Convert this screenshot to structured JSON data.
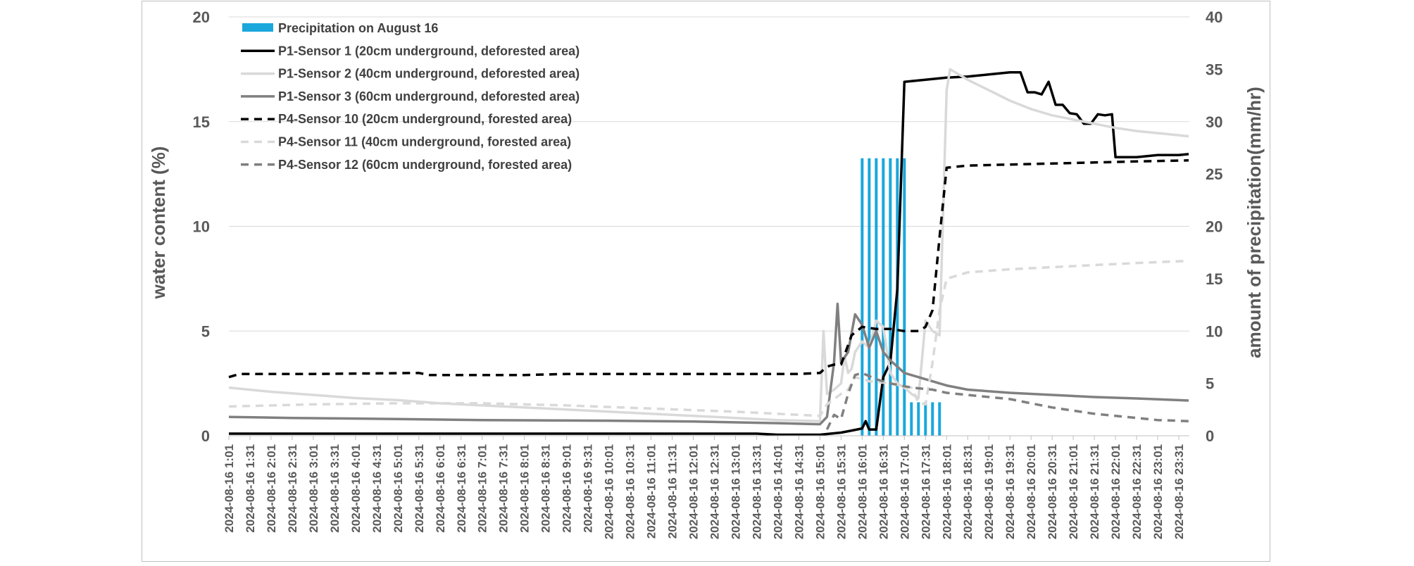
{
  "chart_data": {
    "type": "line",
    "title": "",
    "ylabel_left": "water content (%)",
    "ylabel_right": "amount of precipitation(mm/hr)",
    "ylim_left": [
      0,
      20
    ],
    "yticks_left": [
      0,
      5,
      10,
      15,
      20
    ],
    "ylim_right": [
      0,
      40
    ],
    "yticks_right": [
      0,
      5,
      10,
      15,
      20,
      25,
      30,
      35,
      40
    ],
    "grid": true,
    "legend_position": "top-left",
    "x": [
      "2024-08-16 1:01",
      "2024-08-16 1:31",
      "2024-08-16 2:01",
      "2024-08-16 2:31",
      "2024-08-16 3:01",
      "2024-08-16 3:31",
      "2024-08-16 4:01",
      "2024-08-16 4:31",
      "2024-08-16 5:01",
      "2024-08-16 5:31",
      "2024-08-16 6:01",
      "2024-08-16 6:31",
      "2024-08-16 7:01",
      "2024-08-16 7:31",
      "2024-08-16 8:01",
      "2024-08-16 8:31",
      "2024-08-16 9:01",
      "2024-08-16 9:31",
      "2024-08-16 10:01",
      "2024-08-16 10:31",
      "2024-08-16 11:01",
      "2024-08-16 11:31",
      "2024-08-16 12:01",
      "2024-08-16 12:31",
      "2024-08-16 13:01",
      "2024-08-16 13:31",
      "2024-08-16 14:01",
      "2024-08-16 14:31",
      "2024-08-16 15:01",
      "2024-08-16 15:31",
      "2024-08-16 16:01",
      "2024-08-16 16:31",
      "2024-08-16 17:01",
      "2024-08-16 17:31",
      "2024-08-16 18:01",
      "2024-08-16 18:31",
      "2024-08-16 19:01",
      "2024-08-16 19:31",
      "2024-08-16 20:01",
      "2024-08-16 20:31",
      "2024-08-16 21:01",
      "2024-08-16 21:31",
      "2024-08-16 22:01",
      "2024-08-16 22:31",
      "2024-08-16 23:01",
      "2024-08-16 23:31"
    ],
    "bar_series": {
      "name": "Precipitation on August 16",
      "color": "#1aa7dc",
      "axis": "right",
      "points": [
        {
          "x": "2024-08-16 16:01",
          "y": 26.5
        },
        {
          "x": "2024-08-16 16:11",
          "y": 26.5
        },
        {
          "x": "2024-08-16 16:21",
          "y": 26.5
        },
        {
          "x": "2024-08-16 16:31",
          "y": 26.5
        },
        {
          "x": "2024-08-16 16:41",
          "y": 26.5
        },
        {
          "x": "2024-08-16 16:51",
          "y": 26.5
        },
        {
          "x": "2024-08-16 17:01",
          "y": 26.5
        },
        {
          "x": "2024-08-16 17:11",
          "y": 3.2
        },
        {
          "x": "2024-08-16 17:21",
          "y": 3.2
        },
        {
          "x": "2024-08-16 17:31",
          "y": 3.2
        },
        {
          "x": "2024-08-16 17:41",
          "y": 3.2
        },
        {
          "x": "2024-08-16 17:51",
          "y": 3.2
        }
      ]
    },
    "series": [
      {
        "name": "P1-Sensor 1 (20cm underground, deforested area)",
        "color": "#000000",
        "dash": "solid",
        "points": [
          [
            "2024-08-16 1:01",
            0.1
          ],
          [
            "2024-08-16 3:01",
            0.1
          ],
          [
            "2024-08-16 6:01",
            0.1
          ],
          [
            "2024-08-16 9:01",
            0.1
          ],
          [
            "2024-08-16 12:01",
            0.1
          ],
          [
            "2024-08-16 13:31",
            0.1
          ],
          [
            "2024-08-16 14:01",
            0.05
          ],
          [
            "2024-08-16 15:01",
            0.05
          ],
          [
            "2024-08-16 15:31",
            0.15
          ],
          [
            "2024-08-16 15:46",
            0.25
          ],
          [
            "2024-08-16 16:01",
            0.35
          ],
          [
            "2024-08-16 16:06",
            0.7
          ],
          [
            "2024-08-16 16:11",
            0.3
          ],
          [
            "2024-08-16 16:21",
            0.3
          ],
          [
            "2024-08-16 16:31",
            2.8
          ],
          [
            "2024-08-16 16:41",
            3.5
          ],
          [
            "2024-08-16 16:51",
            7.0
          ],
          [
            "2024-08-16 17:01",
            16.9
          ],
          [
            "2024-08-16 17:31",
            17.0
          ],
          [
            "2024-08-16 18:01",
            17.1
          ],
          [
            "2024-08-16 18:31",
            17.15
          ],
          [
            "2024-08-16 19:01",
            17.25
          ],
          [
            "2024-08-16 19:31",
            17.35
          ],
          [
            "2024-08-16 19:46",
            17.35
          ],
          [
            "2024-08-16 19:56",
            16.4
          ],
          [
            "2024-08-16 20:06",
            16.4
          ],
          [
            "2024-08-16 20:16",
            16.3
          ],
          [
            "2024-08-16 20:26",
            16.9
          ],
          [
            "2024-08-16 20:36",
            15.8
          ],
          [
            "2024-08-16 20:46",
            15.8
          ],
          [
            "2024-08-16 20:56",
            15.4
          ],
          [
            "2024-08-16 21:06",
            15.35
          ],
          [
            "2024-08-16 21:16",
            14.9
          ],
          [
            "2024-08-16 21:26",
            14.9
          ],
          [
            "2024-08-16 21:36",
            15.35
          ],
          [
            "2024-08-16 21:46",
            15.3
          ],
          [
            "2024-08-16 21:56",
            15.35
          ],
          [
            "2024-08-16 22:01",
            13.3
          ],
          [
            "2024-08-16 22:31",
            13.3
          ],
          [
            "2024-08-16 23:01",
            13.4
          ],
          [
            "2024-08-16 23:31",
            13.4
          ],
          [
            "2024-08-16 23:45",
            13.45
          ]
        ]
      },
      {
        "name": "P1-Sensor 2 (40cm underground, deforested area)",
        "color": "#d9d9d9",
        "dash": "solid",
        "points": [
          [
            "2024-08-16 1:01",
            2.3
          ],
          [
            "2024-08-16 2:01",
            2.1
          ],
          [
            "2024-08-16 3:01",
            1.95
          ],
          [
            "2024-08-16 4:01",
            1.8
          ],
          [
            "2024-08-16 5:01",
            1.7
          ],
          [
            "2024-08-16 6:01",
            1.55
          ],
          [
            "2024-08-16 7:01",
            1.45
          ],
          [
            "2024-08-16 8:01",
            1.35
          ],
          [
            "2024-08-16 9:01",
            1.25
          ],
          [
            "2024-08-16 10:01",
            1.15
          ],
          [
            "2024-08-16 11:01",
            1.05
          ],
          [
            "2024-08-16 12:01",
            0.95
          ],
          [
            "2024-08-16 13:01",
            0.85
          ],
          [
            "2024-08-16 14:01",
            0.75
          ],
          [
            "2024-08-16 15:01",
            0.7
          ],
          [
            "2024-08-16 15:06",
            5.0
          ],
          [
            "2024-08-16 15:11",
            2.0
          ],
          [
            "2024-08-16 15:21",
            2.2
          ],
          [
            "2024-08-16 15:31",
            2.5
          ],
          [
            "2024-08-16 15:36",
            3.8
          ],
          [
            "2024-08-16 15:41",
            3.0
          ],
          [
            "2024-08-16 15:46",
            3.2
          ],
          [
            "2024-08-16 15:51",
            4.0
          ],
          [
            "2024-08-16 16:01",
            4.5
          ],
          [
            "2024-08-16 16:11",
            4.2
          ],
          [
            "2024-08-16 16:21",
            5.5
          ],
          [
            "2024-08-16 16:31",
            5.2
          ],
          [
            "2024-08-16 16:41",
            3.0
          ],
          [
            "2024-08-16 16:51",
            2.5
          ],
          [
            "2024-08-16 17:01",
            2.3
          ],
          [
            "2024-08-16 17:11",
            2.0
          ],
          [
            "2024-08-16 17:21",
            1.8
          ],
          [
            "2024-08-16 17:31",
            5.5
          ],
          [
            "2024-08-16 17:41",
            5.0
          ],
          [
            "2024-08-16 17:51",
            4.8
          ],
          [
            "2024-08-16 18:01",
            16.5
          ],
          [
            "2024-08-16 18:06",
            17.5
          ],
          [
            "2024-08-16 18:31",
            17.0
          ],
          [
            "2024-08-16 19:01",
            16.5
          ],
          [
            "2024-08-16 19:31",
            16.0
          ],
          [
            "2024-08-16 20:01",
            15.6
          ],
          [
            "2024-08-16 20:31",
            15.3
          ],
          [
            "2024-08-16 21:01",
            15.1
          ],
          [
            "2024-08-16 21:31",
            14.9
          ],
          [
            "2024-08-16 22:01",
            14.7
          ],
          [
            "2024-08-16 22:31",
            14.55
          ],
          [
            "2024-08-16 23:01",
            14.45
          ],
          [
            "2024-08-16 23:31",
            14.35
          ],
          [
            "2024-08-16 23:45",
            14.3
          ]
        ]
      },
      {
        "name": "P1-Sensor 3 (60cm underground, deforested area)",
        "color": "#808080",
        "dash": "solid",
        "points": [
          [
            "2024-08-16 1:01",
            0.9
          ],
          [
            "2024-08-16 2:31",
            0.85
          ],
          [
            "2024-08-16 5:01",
            0.8
          ],
          [
            "2024-08-16 7:01",
            0.75
          ],
          [
            "2024-08-16 10:01",
            0.72
          ],
          [
            "2024-08-16 12:01",
            0.68
          ],
          [
            "2024-08-16 14:01",
            0.6
          ],
          [
            "2024-08-16 15:01",
            0.55
          ],
          [
            "2024-08-16 15:11",
            0.9
          ],
          [
            "2024-08-16 15:21",
            3.5
          ],
          [
            "2024-08-16 15:26",
            6.3
          ],
          [
            "2024-08-16 15:31",
            3.5
          ],
          [
            "2024-08-16 15:41",
            4.0
          ],
          [
            "2024-08-16 15:51",
            5.8
          ],
          [
            "2024-08-16 16:01",
            5.3
          ],
          [
            "2024-08-16 16:11",
            4.2
          ],
          [
            "2024-08-16 16:21",
            5.0
          ],
          [
            "2024-08-16 16:31",
            4.0
          ],
          [
            "2024-08-16 16:41",
            3.6
          ],
          [
            "2024-08-16 17:01",
            3.0
          ],
          [
            "2024-08-16 17:31",
            2.7
          ],
          [
            "2024-08-16 18:01",
            2.4
          ],
          [
            "2024-08-16 18:31",
            2.2
          ],
          [
            "2024-08-16 19:31",
            2.05
          ],
          [
            "2024-08-16 20:31",
            1.95
          ],
          [
            "2024-08-16 21:31",
            1.85
          ],
          [
            "2024-08-16 22:31",
            1.78
          ],
          [
            "2024-08-16 23:31",
            1.7
          ],
          [
            "2024-08-16 23:45",
            1.68
          ]
        ]
      },
      {
        "name": "P4-Sensor 10 (20cm underground, forested area)",
        "color": "#000000",
        "dash": "dashed",
        "points": [
          [
            "2024-08-16 1:01",
            2.8
          ],
          [
            "2024-08-16 1:16",
            2.95
          ],
          [
            "2024-08-16 3:01",
            2.95
          ],
          [
            "2024-08-16 5:31",
            3.0
          ],
          [
            "2024-08-16 5:46",
            2.9
          ],
          [
            "2024-08-16 8:01",
            2.9
          ],
          [
            "2024-08-16 9:01",
            2.95
          ],
          [
            "2024-08-16 12:01",
            2.95
          ],
          [
            "2024-08-16 14:31",
            2.95
          ],
          [
            "2024-08-16 15:01",
            3.0
          ],
          [
            "2024-08-16 15:11",
            3.3
          ],
          [
            "2024-08-16 15:21",
            3.4
          ],
          [
            "2024-08-16 15:31",
            3.4
          ],
          [
            "2024-08-16 15:46",
            4.8
          ],
          [
            "2024-08-16 16:01",
            5.2
          ],
          [
            "2024-08-16 16:21",
            5.1
          ],
          [
            "2024-08-16 16:41",
            5.1
          ],
          [
            "2024-08-16 17:01",
            5.0
          ],
          [
            "2024-08-16 17:21",
            5.0
          ],
          [
            "2024-08-16 17:31",
            5.2
          ],
          [
            "2024-08-16 17:41",
            6.0
          ],
          [
            "2024-08-16 17:51",
            9.5
          ],
          [
            "2024-08-16 18:01",
            12.8
          ],
          [
            "2024-08-16 18:31",
            12.9
          ],
          [
            "2024-08-16 19:31",
            12.95
          ],
          [
            "2024-08-16 20:31",
            13.0
          ],
          [
            "2024-08-16 21:31",
            13.05
          ],
          [
            "2024-08-16 22:31",
            13.1
          ],
          [
            "2024-08-16 23:45",
            13.15
          ]
        ]
      },
      {
        "name": "P4-Sensor 11 (40cm underground, forested area)",
        "color": "#d9d9d9",
        "dash": "dashed",
        "points": [
          [
            "2024-08-16 1:01",
            1.4
          ],
          [
            "2024-08-16 3:01",
            1.5
          ],
          [
            "2024-08-16 5:01",
            1.55
          ],
          [
            "2024-08-16 7:01",
            1.55
          ],
          [
            "2024-08-16 9:01",
            1.45
          ],
          [
            "2024-08-16 11:01",
            1.3
          ],
          [
            "2024-08-16 13:01",
            1.15
          ],
          [
            "2024-08-16 14:31",
            1.0
          ],
          [
            "2024-08-16 15:01",
            0.95
          ],
          [
            "2024-08-16 15:11",
            1.5
          ],
          [
            "2024-08-16 15:31",
            2.0
          ],
          [
            "2024-08-16 15:41",
            2.2
          ],
          [
            "2024-08-16 15:51",
            2.8
          ],
          [
            "2024-08-16 16:11",
            2.6
          ],
          [
            "2024-08-16 16:41",
            2.5
          ],
          [
            "2024-08-16 17:11",
            2.3
          ],
          [
            "2024-08-16 17:21",
            1.6
          ],
          [
            "2024-08-16 17:31",
            1.5
          ],
          [
            "2024-08-16 17:41",
            3.5
          ],
          [
            "2024-08-16 17:51",
            6.0
          ],
          [
            "2024-08-16 18:01",
            7.5
          ],
          [
            "2024-08-16 18:31",
            7.8
          ],
          [
            "2024-08-16 19:31",
            7.95
          ],
          [
            "2024-08-16 20:31",
            8.05
          ],
          [
            "2024-08-16 21:31",
            8.15
          ],
          [
            "2024-08-16 22:31",
            8.25
          ],
          [
            "2024-08-16 23:45",
            8.35
          ]
        ]
      },
      {
        "name": "P4-Sensor 12 (60cm underground, forested area)",
        "color": "#808080",
        "dash": "dashed",
        "points": [
          [
            "2024-08-16 15:11",
            0.3
          ],
          [
            "2024-08-16 15:21",
            1.0
          ],
          [
            "2024-08-16 15:31",
            0.8
          ],
          [
            "2024-08-16 15:41",
            2.0
          ],
          [
            "2024-08-16 15:51",
            2.9
          ],
          [
            "2024-08-16 16:01",
            3.0
          ],
          [
            "2024-08-16 16:21",
            2.7
          ],
          [
            "2024-08-16 16:41",
            2.5
          ],
          [
            "2024-08-16 17:11",
            2.3
          ],
          [
            "2024-08-16 17:41",
            2.2
          ],
          [
            "2024-08-16 18:01",
            2.05
          ],
          [
            "2024-08-16 18:31",
            1.95
          ],
          [
            "2024-08-16 19:31",
            1.75
          ],
          [
            "2024-08-16 20:01",
            1.55
          ],
          [
            "2024-08-16 20:31",
            1.35
          ],
          [
            "2024-08-16 21:01",
            1.2
          ],
          [
            "2024-08-16 21:31",
            1.05
          ],
          [
            "2024-08-16 22:01",
            0.95
          ],
          [
            "2024-08-16 22:31",
            0.85
          ],
          [
            "2024-08-16 23:01",
            0.75
          ],
          [
            "2024-08-16 23:45",
            0.7
          ]
        ]
      }
    ]
  }
}
